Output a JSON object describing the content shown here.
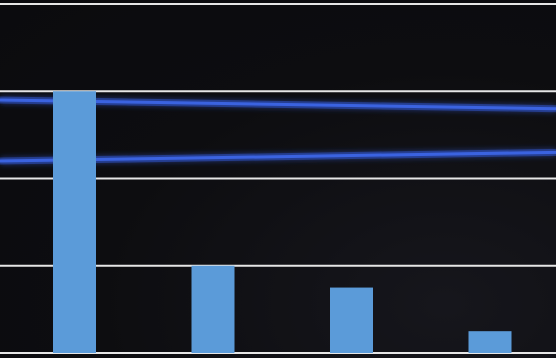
{
  "chart_data": {
    "type": "bar",
    "categories": [
      "",
      "",
      "",
      ""
    ],
    "values": [
      3.0,
      1.0,
      0.75,
      0.25
    ],
    "ylim": [
      0,
      4
    ],
    "gridlines": [
      0,
      1,
      2,
      3,
      4
    ],
    "grid": true,
    "bar_color": "#5b9bd9",
    "gridline_color": "#e6e6e6",
    "background_color": "#0d0d10",
    "decorative_lines": [
      {
        "name": "",
        "values": [
          2.9,
          2.8
        ],
        "color": "#2f52c4"
      },
      {
        "name": "",
        "values": [
          2.2,
          2.3
        ],
        "color": "#2f52c4"
      }
    ]
  }
}
